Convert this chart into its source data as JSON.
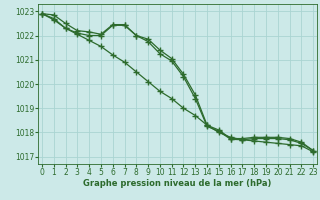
{
  "title": "Graphe pression niveau de la mer (hPa)",
  "bg_color": "#cce9e8",
  "grid_color": "#aad4d2",
  "line_color": "#2d6b2d",
  "x_ticks": [
    0,
    1,
    2,
    3,
    4,
    5,
    6,
    7,
    8,
    9,
    10,
    11,
    12,
    13,
    14,
    15,
    16,
    17,
    18,
    19,
    20,
    21,
    22,
    23
  ],
  "y_ticks": [
    1017,
    1018,
    1019,
    1020,
    1021,
    1022,
    1023
  ],
  "ylim": [
    1016.7,
    1023.3
  ],
  "xlim": [
    -0.3,
    23.3
  ],
  "series": [
    [
      1022.9,
      1022.85,
      1022.5,
      1022.2,
      1022.15,
      1022.05,
      1022.45,
      1022.45,
      1022.0,
      1021.85,
      1021.4,
      1021.05,
      1020.4,
      1019.55,
      1018.3,
      1018.1,
      1017.75,
      1017.75,
      1017.8,
      1017.8,
      1017.8,
      1017.75,
      1017.6,
      1017.25
    ],
    [
      1022.9,
      1022.7,
      1022.3,
      1022.05,
      1021.8,
      1021.55,
      1021.2,
      1020.9,
      1020.5,
      1020.1,
      1019.7,
      1019.4,
      1019.0,
      1018.7,
      1018.3,
      1018.0,
      1017.8,
      1017.7,
      1017.65,
      1017.6,
      1017.55,
      1017.5,
      1017.45,
      1017.2
    ],
    [
      1022.9,
      1022.65,
      1022.3,
      1022.1,
      1022.0,
      1022.0,
      1022.42,
      1022.42,
      1022.0,
      1021.75,
      1021.25,
      1020.95,
      1020.3,
      1019.4,
      1018.25,
      1018.05,
      1017.72,
      1017.7,
      1017.75,
      1017.75,
      1017.75,
      1017.7,
      1017.55,
      1017.25
    ]
  ],
  "marker": "+",
  "markersize": 4,
  "markeredgewidth": 1.0,
  "linewidth": 0.9,
  "tick_fontsize": 5.5,
  "label_fontsize": 6.0,
  "title_fontpad": 1
}
